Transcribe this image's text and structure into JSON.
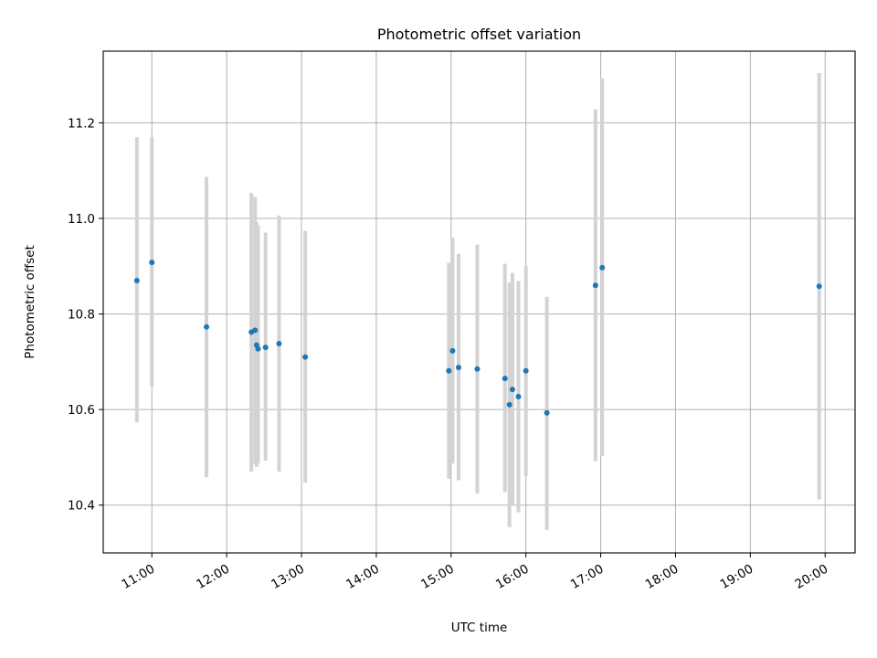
{
  "chart_data": {
    "type": "scatter",
    "title": "Photometric offset variation",
    "xlabel": "UTC time",
    "ylabel": "Photometric offset",
    "x_unit": "hours (UTC)",
    "xlim": [
      10.35,
      20.4
    ],
    "ylim": [
      10.3,
      11.35
    ],
    "x_ticks": [
      {
        "value": 11,
        "label": "11:00"
      },
      {
        "value": 12,
        "label": "12:00"
      },
      {
        "value": 13,
        "label": "13:00"
      },
      {
        "value": 14,
        "label": "14:00"
      },
      {
        "value": 15,
        "label": "15:00"
      },
      {
        "value": 16,
        "label": "16:00"
      },
      {
        "value": 17,
        "label": "17:00"
      },
      {
        "value": 18,
        "label": "18:00"
      },
      {
        "value": 19,
        "label": "19:00"
      },
      {
        "value": 20,
        "label": "20:00"
      }
    ],
    "y_ticks": [
      {
        "value": 10.4,
        "label": "10.4"
      },
      {
        "value": 10.6,
        "label": "10.6"
      },
      {
        "value": 10.8,
        "label": "10.8"
      },
      {
        "value": 11.0,
        "label": "11.0"
      },
      {
        "value": 11.2,
        "label": "11.2"
      }
    ],
    "grid": true,
    "marker_color": "#1f77b4",
    "errorbar_color": "#d3d3d3",
    "points": [
      {
        "x": 10.8,
        "y": 10.87,
        "ylow": 10.573,
        "yhigh": 11.17
      },
      {
        "x": 11.0,
        "y": 10.908,
        "ylow": 10.648,
        "yhigh": 11.17
      },
      {
        "x": 11.73,
        "y": 10.773,
        "ylow": 10.458,
        "yhigh": 11.087
      },
      {
        "x": 12.33,
        "y": 10.762,
        "ylow": 10.47,
        "yhigh": 11.053
      },
      {
        "x": 12.38,
        "y": 10.766,
        "ylow": 10.487,
        "yhigh": 11.045
      },
      {
        "x": 12.4,
        "y": 10.735,
        "ylow": 10.48,
        "yhigh": 10.992
      },
      {
        "x": 12.42,
        "y": 10.727,
        "ylow": 10.487,
        "yhigh": 10.985
      },
      {
        "x": 12.52,
        "y": 10.73,
        "ylow": 10.493,
        "yhigh": 10.97
      },
      {
        "x": 12.7,
        "y": 10.738,
        "ylow": 10.47,
        "yhigh": 11.006
      },
      {
        "x": 13.05,
        "y": 10.71,
        "ylow": 10.447,
        "yhigh": 10.974
      },
      {
        "x": 14.97,
        "y": 10.681,
        "ylow": 10.455,
        "yhigh": 10.907
      },
      {
        "x": 15.02,
        "y": 10.723,
        "ylow": 10.487,
        "yhigh": 10.96
      },
      {
        "x": 15.1,
        "y": 10.688,
        "ylow": 10.452,
        "yhigh": 10.926
      },
      {
        "x": 15.35,
        "y": 10.685,
        "ylow": 10.424,
        "yhigh": 10.945
      },
      {
        "x": 15.72,
        "y": 10.665,
        "ylow": 10.427,
        "yhigh": 10.905
      },
      {
        "x": 15.78,
        "y": 10.61,
        "ylow": 10.354,
        "yhigh": 10.866
      },
      {
        "x": 15.82,
        "y": 10.642,
        "ylow": 10.399,
        "yhigh": 10.886
      },
      {
        "x": 15.9,
        "y": 10.627,
        "ylow": 10.385,
        "yhigh": 10.869
      },
      {
        "x": 16.0,
        "y": 10.681,
        "ylow": 10.461,
        "yhigh": 10.9
      },
      {
        "x": 16.28,
        "y": 10.593,
        "ylow": 10.348,
        "yhigh": 10.836
      },
      {
        "x": 16.93,
        "y": 10.86,
        "ylow": 10.492,
        "yhigh": 11.228
      },
      {
        "x": 17.02,
        "y": 10.897,
        "ylow": 10.503,
        "yhigh": 11.293
      },
      {
        "x": 19.92,
        "y": 10.858,
        "ylow": 10.412,
        "yhigh": 11.304
      }
    ]
  }
}
